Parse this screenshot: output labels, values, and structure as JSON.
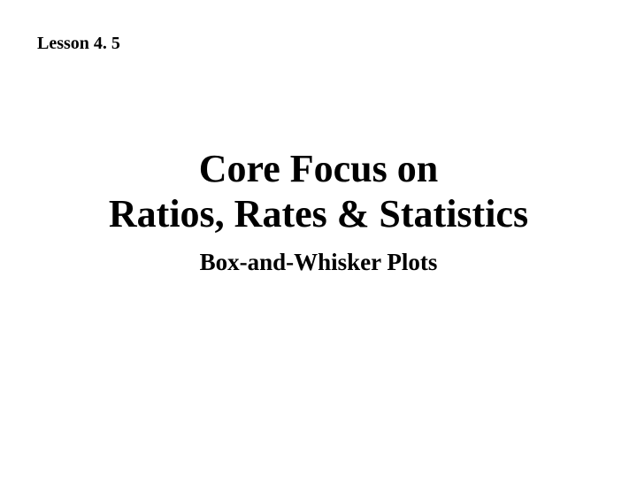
{
  "header": {
    "lesson_label": "Lesson 4. 5"
  },
  "main": {
    "title_line1": "Core Focus on",
    "title_line2": "Ratios, Rates & Statistics",
    "subtitle": "Box-and-Whisker Plots"
  },
  "styling": {
    "background_color": "#ffffff",
    "text_color": "#000000",
    "font_family": "Times New Roman",
    "lesson_label_fontsize": 20,
    "title_fontsize": 44,
    "subtitle_fontsize": 27,
    "all_bold": true
  }
}
